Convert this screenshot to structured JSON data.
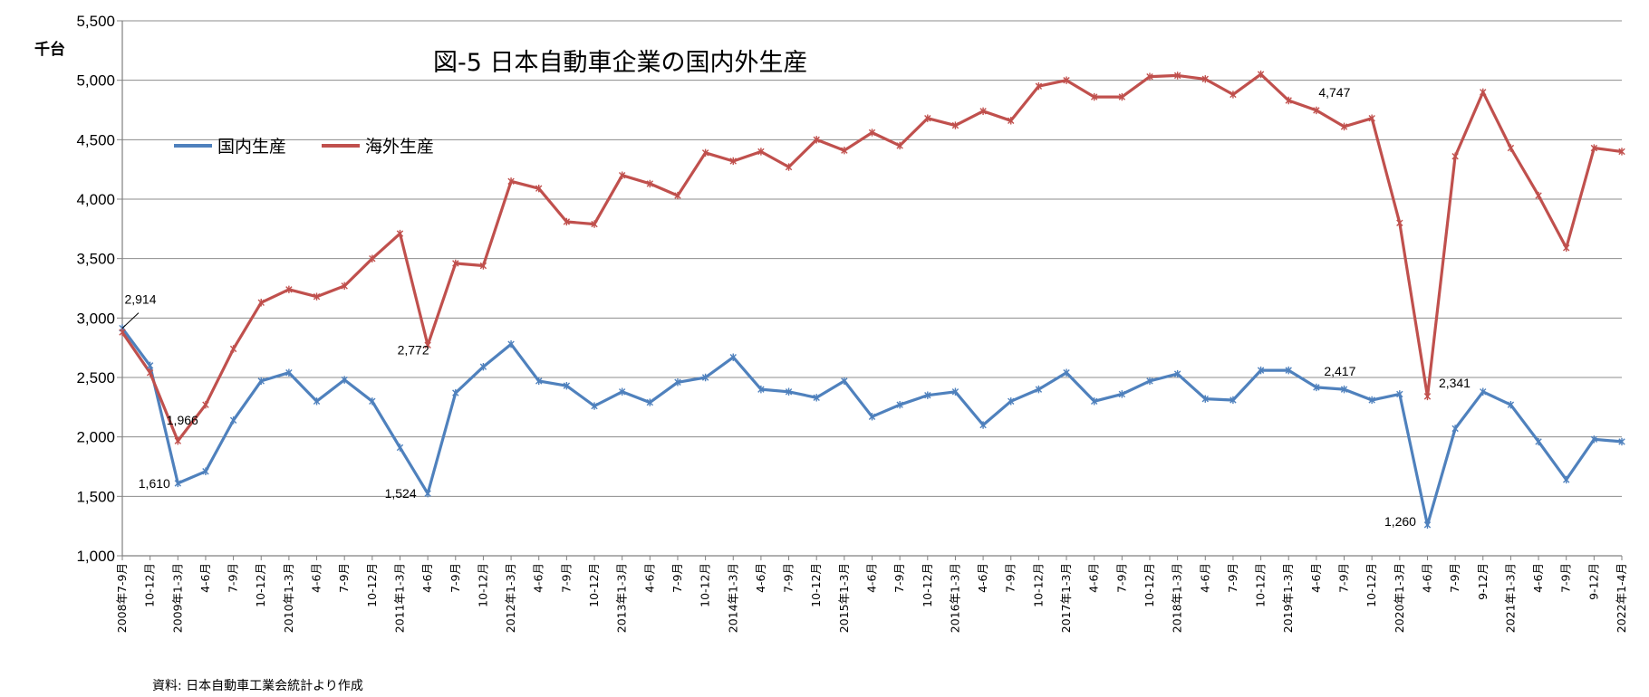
{
  "chart_data": {
    "type": "line",
    "title": "図-5 日本自動車企業の国内外生産",
    "ylabel": "千台",
    "source": "資料: 日本自動車工業会統計より作成",
    "ylim": [
      1000,
      5500
    ],
    "yticks": [
      1000,
      1500,
      2000,
      2500,
      3000,
      3500,
      4000,
      4500,
      5000,
      5500
    ],
    "ytick_labels": [
      "1,000",
      "1,500",
      "2,000",
      "2,500",
      "3,000",
      "3,500",
      "4,000",
      "4,500",
      "5,000",
      "5,500"
    ],
    "grid": true,
    "legend_position": "upper-left",
    "categories": [
      "2008年7-9月",
      "10-12月",
      "2009年1-3月",
      "4-6月",
      "7-9月",
      "10-12月",
      "2010年1-3月",
      "4-6月",
      "7-9月",
      "10-12月",
      "2011年1-3月",
      "4-6月",
      "7-9月",
      "10-12月",
      "2012年1-3月",
      "4-6月",
      "7-9月",
      "10-12月",
      "2013年1-3月",
      "4-6月",
      "7-9月",
      "10-12月",
      "2014年1-3月",
      "4-6月",
      "7-9月",
      "10-12月",
      "2015年1-3月",
      "4-6月",
      "7-9月",
      "10-12月",
      "2016年1-3月",
      "4-6月",
      "7-9月",
      "10-12月",
      "2017年1-3月",
      "4-6月",
      "7-9月",
      "10-12月",
      "2018年1-3月",
      "4-6月",
      "7-9月",
      "10-12月",
      "2019年1-3月",
      "4-6月",
      "7-9月",
      "10-12月",
      "2020年1-3月",
      "4-6月",
      "7-9月",
      "9-12月",
      "2021年1-3月",
      "4-6月",
      "7-9月",
      "9-12月",
      "2022年1-4月"
    ],
    "series": [
      {
        "name": "国内生産",
        "color": "#4F81BD",
        "values": [
          2914,
          2600,
          1610,
          1710,
          2140,
          2470,
          2540,
          2300,
          2480,
          2300,
          1910,
          1524,
          2370,
          2590,
          2780,
          2470,
          2430,
          2260,
          2380,
          2290,
          2460,
          2500,
          2670,
          2400,
          2380,
          2330,
          2470,
          2170,
          2270,
          2350,
          2380,
          2100,
          2300,
          2400,
          2540,
          2300,
          2360,
          2470,
          2530,
          2320,
          2310,
          2560,
          2560,
          2417,
          2400,
          2310,
          2360,
          1260,
          2070,
          2380,
          2270,
          1960,
          1640,
          1980,
          1960
        ]
      },
      {
        "name": "海外生産",
        "color": "#C0504D",
        "values": [
          2880,
          2540,
          1966,
          2270,
          2740,
          3130,
          3240,
          3180,
          3270,
          3500,
          3710,
          2772,
          3460,
          3440,
          4150,
          4090,
          3810,
          3790,
          4200,
          4130,
          4030,
          4390,
          4320,
          4400,
          4270,
          4500,
          4410,
          4560,
          4450,
          4680,
          4620,
          4740,
          4660,
          4950,
          5000,
          4860,
          4860,
          5030,
          5040,
          5010,
          4880,
          5050,
          4830,
          4747,
          4610,
          4680,
          3800,
          2341,
          4360,
          4900,
          4430,
          4030,
          3590,
          4430,
          4400
        ]
      }
    ],
    "annotations": [
      {
        "series": 0,
        "index": 0,
        "text": "2,914"
      },
      {
        "series": 1,
        "index": 2,
        "text": "1,966"
      },
      {
        "series": 0,
        "index": 2,
        "text": "1,610"
      },
      {
        "series": 1,
        "index": 11,
        "text": "2,772"
      },
      {
        "series": 0,
        "index": 11,
        "text": "1,524"
      },
      {
        "series": 1,
        "index": 43,
        "text": "4,747"
      },
      {
        "series": 0,
        "index": 43,
        "text": "2,417"
      },
      {
        "series": 1,
        "index": 47,
        "text": "2,341"
      },
      {
        "series": 0,
        "index": 47,
        "text": "1,260"
      }
    ]
  }
}
